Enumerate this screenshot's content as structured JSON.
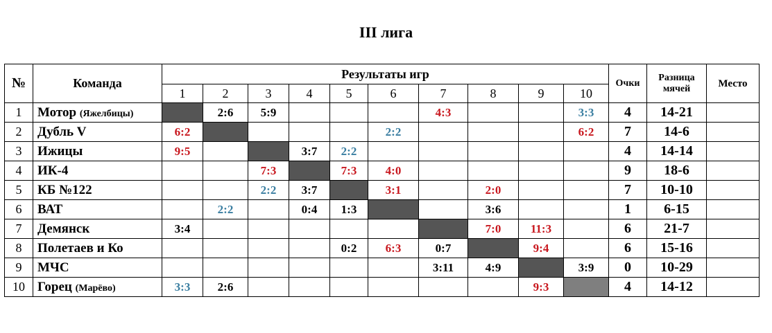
{
  "title": "III лига",
  "headers": {
    "num": "№",
    "team": "Команда",
    "results": "Результаты игр",
    "cols": [
      "1",
      "2",
      "3",
      "4",
      "5",
      "6",
      "7",
      "8",
      "9",
      "10"
    ],
    "points": "Очки",
    "diff": "Разница мячей",
    "place": "Место"
  },
  "rows": [
    {
      "num": "1",
      "team": "Мотор",
      "team_note": "(Яжелбицы)",
      "cells": [
        "",
        "2:6",
        "5:9",
        "",
        "",
        "",
        "4:3",
        "",
        "",
        "3:3"
      ],
      "points": "4",
      "diff": "14-21",
      "place": ""
    },
    {
      "num": "2",
      "team": "Дубль V",
      "team_note": "",
      "cells": [
        "6:2",
        "",
        "",
        "",
        "",
        "2:2",
        "",
        "",
        "",
        "6:2"
      ],
      "points": "7",
      "diff": "14-6",
      "place": ""
    },
    {
      "num": "3",
      "team": "Ижицы",
      "team_note": "",
      "cells": [
        "9:5",
        "",
        "",
        "3:7",
        "2:2",
        "",
        "",
        "",
        "",
        ""
      ],
      "points": "4",
      "diff": "14-14",
      "place": ""
    },
    {
      "num": "4",
      "team": "ИК-4",
      "team_note": "",
      "cells": [
        "",
        "",
        "7:3",
        "",
        "7:3",
        "4:0",
        "",
        "",
        "",
        ""
      ],
      "points": "9",
      "diff": "18-6",
      "place": ""
    },
    {
      "num": "5",
      "team": "КБ №122",
      "team_note": "",
      "cells": [
        "",
        "",
        "2:2",
        "3:7",
        "",
        "3:1",
        "",
        "2:0",
        "",
        ""
      ],
      "points": "7",
      "diff": "10-10",
      "place": ""
    },
    {
      "num": "6",
      "team": "ВАТ",
      "team_note": "",
      "cells": [
        "",
        "2:2",
        "",
        "0:4",
        "1:3",
        "",
        "",
        "3:6",
        "",
        ""
      ],
      "points": "1",
      "diff": "6-15",
      "place": ""
    },
    {
      "num": "7",
      "team": "Демянск",
      "team_note": "",
      "cells": [
        "3:4",
        "",
        "",
        "",
        "",
        "",
        "",
        "7:0",
        "11:3",
        ""
      ],
      "points": "6",
      "diff": "21-7",
      "place": ""
    },
    {
      "num": "8",
      "team": "Полетаев и Ко",
      "team_note": "",
      "cells": [
        "",
        "",
        "",
        "",
        "0:2",
        "6:3",
        "0:7",
        "",
        "9:4",
        ""
      ],
      "points": "6",
      "diff": "15-16",
      "place": ""
    },
    {
      "num": "9",
      "team": "МЧС",
      "team_note": "",
      "cells": [
        "",
        "",
        "",
        "",
        "",
        "",
        "3:11",
        "4:9",
        "",
        "3:9"
      ],
      "points": "0",
      "diff": "10-29",
      "place": ""
    },
    {
      "num": "10",
      "team": "Горец",
      "team_note": "(Марёво)",
      "cells": [
        "3:3",
        "2:6",
        "",
        "",
        "",
        "",
        "",
        "",
        "9:3",
        ""
      ],
      "points": "4",
      "diff": "14-12",
      "place": ""
    }
  ],
  "colors": {
    "win": "#c8171e",
    "draw": "#3a7ea1",
    "loss": "#000000",
    "diagonal": "#555555"
  }
}
